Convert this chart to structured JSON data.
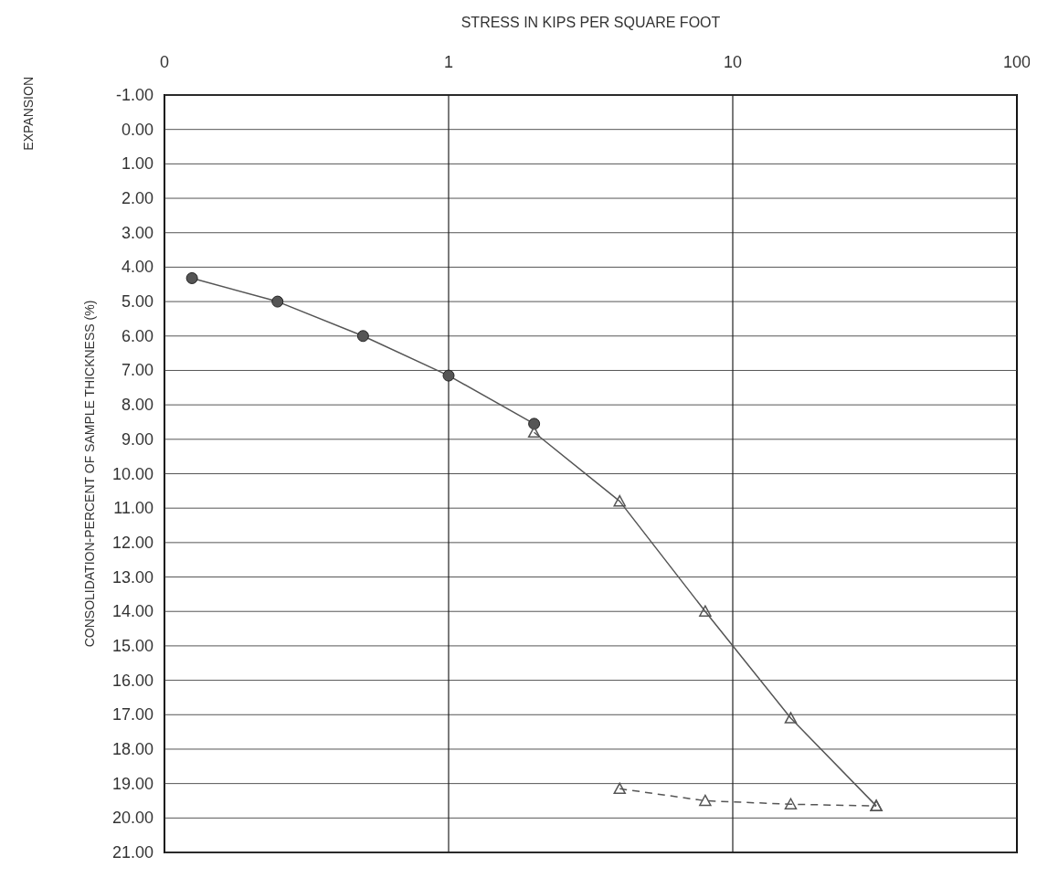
{
  "chart_data": {
    "type": "line",
    "xlabel": "STRESS IN KIPS PER SQUARE FOOT",
    "ylabel": "CONSOLIDATION-PERCENT OF SAMPLE THICKNESS (%)",
    "annotations": [
      "EXPANSION"
    ],
    "log": "x",
    "grid": true,
    "xlim": [
      0.1,
      100
    ],
    "xticks": [
      {
        "value": 0.1,
        "label": "0"
      },
      1,
      10,
      100
    ],
    "ylim": [
      21,
      -1
    ],
    "yticks": [
      {
        "value": -1,
        "label": "-1.00"
      },
      {
        "value": 0,
        "label": "0.00"
      },
      {
        "value": 1,
        "label": "1.00"
      },
      {
        "value": 2,
        "label": "2.00"
      },
      {
        "value": 3,
        "label": "3.00"
      },
      {
        "value": 4,
        "label": "4.00"
      },
      {
        "value": 5,
        "label": "5.00"
      },
      {
        "value": 6,
        "label": "6.00"
      },
      {
        "value": 7,
        "label": "7.00"
      },
      {
        "value": 8,
        "label": "8.00"
      },
      {
        "value": 9,
        "label": "9.00"
      },
      {
        "value": 10,
        "label": "10.00"
      },
      {
        "value": 11,
        "label": "11.00"
      },
      {
        "value": 12,
        "label": "12.00"
      },
      {
        "value": 13,
        "label": "13.00"
      },
      {
        "value": 14,
        "label": "14.00"
      },
      {
        "value": 15,
        "label": "15.00"
      },
      {
        "value": 16,
        "label": "16.00"
      },
      {
        "value": 17,
        "label": "17.00"
      },
      {
        "value": 18,
        "label": "18.00"
      },
      {
        "value": 19,
        "label": "19.00"
      },
      {
        "value": 20,
        "label": "20.00"
      },
      {
        "value": 21,
        "label": "21.00"
      }
    ],
    "series": [
      {
        "color": "#555555",
        "marker": "circle",
        "line_style": "solid",
        "x": [
          0.125,
          0.25,
          0.5,
          1,
          2
        ],
        "values": [
          4.32,
          5.0,
          6.0,
          7.15,
          8.55
        ]
      },
      {
        "color": "#555555",
        "marker": "triangle",
        "line_style": "solid",
        "x": [
          2,
          4,
          8,
          16,
          32
        ],
        "values": [
          8.8,
          10.8,
          14.0,
          17.1,
          19.65
        ]
      },
      {
        "color": "#555555",
        "marker": "triangle",
        "line_style": "dashed",
        "x": [
          4,
          8,
          16,
          32
        ],
        "values": [
          19.15,
          19.5,
          19.6,
          19.65
        ]
      }
    ]
  }
}
